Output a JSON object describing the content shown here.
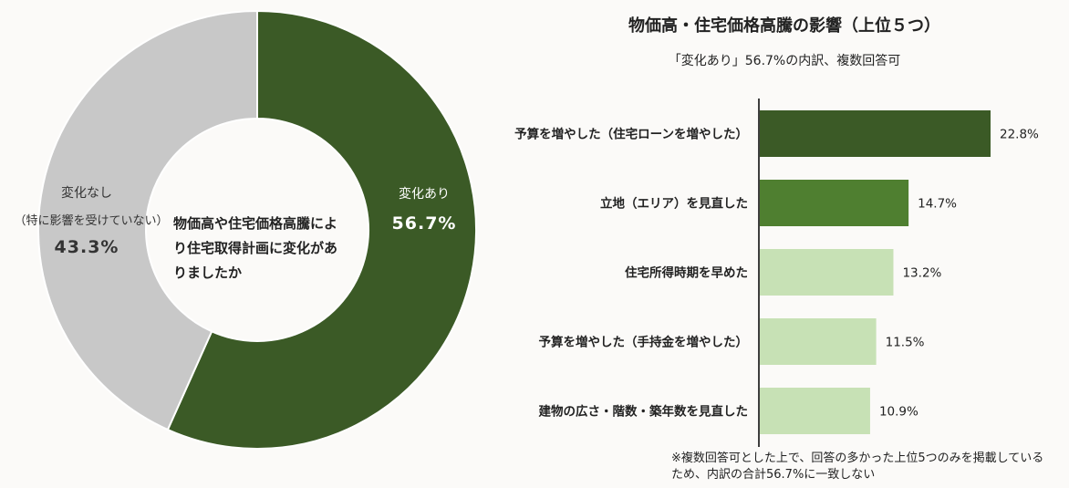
{
  "chart_data": [
    {
      "type": "pie",
      "center_label": "物価高や住宅価格高騰により住宅取得計画に変化がありましたか",
      "slices": [
        {
          "label": "変化あり",
          "sublabel": "",
          "value": 56.7,
          "value_label": "56.7%",
          "color": "#3b5a26"
        },
        {
          "label": "変化なし",
          "sublabel": "（特に影響を受けていない）",
          "value": 43.3,
          "value_label": "43.3%",
          "color": "#c8c8c8"
        }
      ]
    },
    {
      "type": "bar",
      "orientation": "horizontal",
      "title": "物価高・住宅価格高騰の影響（上位５つ）",
      "subtitle": "「変化あり」56.7%の内訳、複数回答可",
      "categories": [
        "予算を増やした（住宅ローンを増やした）",
        "立地（エリア）を見直した",
        "住宅所得時期を早めた",
        "予算を増やした（手持金を増やした）",
        "建物の広さ・階数・築年数を見直した"
      ],
      "values": [
        22.8,
        14.7,
        13.2,
        11.5,
        10.9
      ],
      "value_labels": [
        "22.8%",
        "14.7%",
        "13.2%",
        "11.5%",
        "10.9%"
      ],
      "colors": [
        "#3b5a26",
        "#4f7f30",
        "#c7e1b5",
        "#c7e1b5",
        "#c7e1b5"
      ],
      "xlim": [
        0,
        25
      ],
      "note": "※複数回答可とした上で、回答の多かった上位5つのみを掲載しているため、内訳の合計56.7%に一致しない"
    }
  ]
}
